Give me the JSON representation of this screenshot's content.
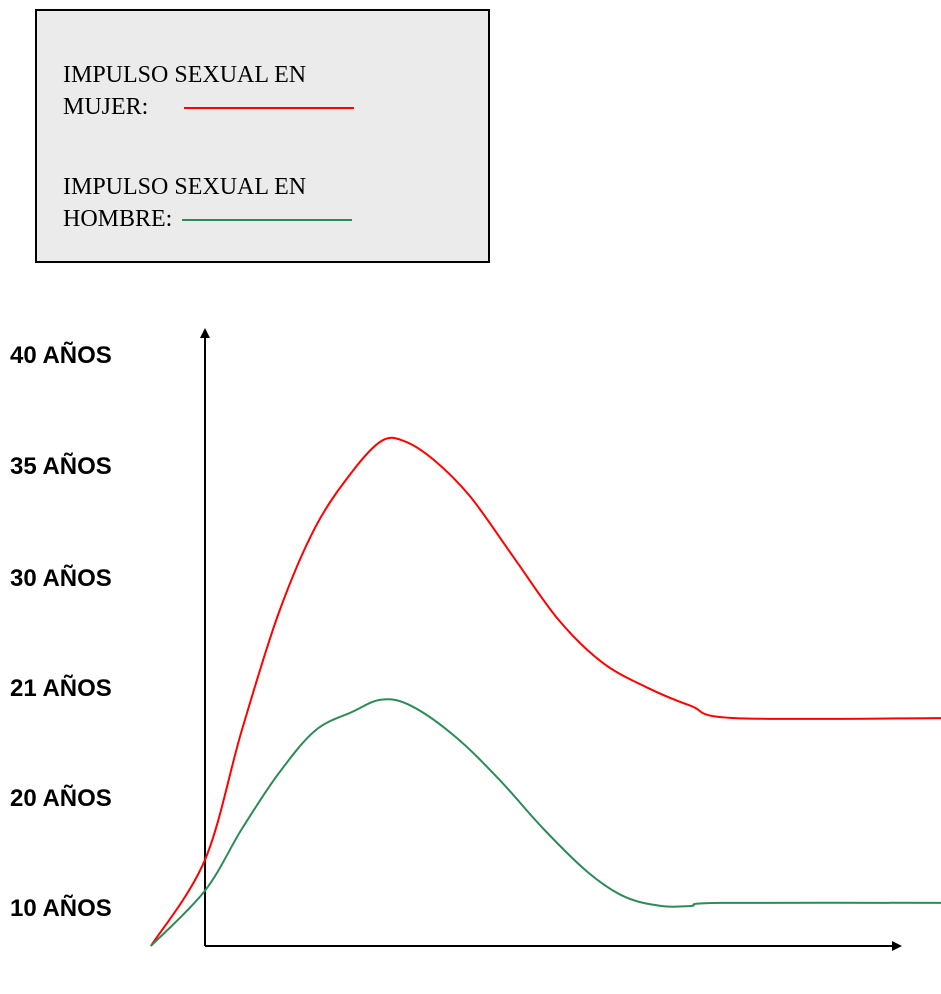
{
  "legend": {
    "entries": [
      {
        "label_line1": "IMPULSO SEXUAL EN",
        "label_line2": "MUJER:",
        "color": "#ff0000"
      },
      {
        "label_line1": "IMPULSO SEXUAL EN",
        "label_line2": "HOMBRE:",
        "color": "#2e8b57"
      }
    ]
  },
  "chart_data": {
    "type": "line",
    "y_tick_labels": [
      "40 AÑOS",
      "35 AÑOS",
      "30 AÑOS",
      "21 AÑOS",
      "20 AÑOS",
      "10 AÑOS"
    ],
    "grid": false,
    "legend_placement": "top-left",
    "series": [
      {
        "name": "IMPULSO SEXUAL EN MUJER",
        "color": "#ff0000",
        "points": [
          [
            -0.0735,
            0.0
          ],
          [
            0.0,
            0.14
          ],
          [
            0.05,
            0.35
          ],
          [
            0.1,
            0.54
          ],
          [
            0.15,
            0.68
          ],
          [
            0.2,
            0.77
          ],
          [
            0.24,
            0.82
          ],
          [
            0.27,
            0.82
          ],
          [
            0.31,
            0.79
          ],
          [
            0.36,
            0.73
          ],
          [
            0.42,
            0.63
          ],
          [
            0.48,
            0.53
          ],
          [
            0.54,
            0.46
          ],
          [
            0.6,
            0.42
          ],
          [
            0.66,
            0.39
          ],
          [
            0.72,
            0.37
          ],
          [
            1.0,
            0.37
          ]
        ]
      },
      {
        "name": "IMPULSO SEXUAL EN HOMBRE",
        "color": "#2e8b57",
        "points": [
          [
            -0.0735,
            0.0
          ],
          [
            0.0,
            0.09
          ],
          [
            0.05,
            0.19
          ],
          [
            0.1,
            0.28
          ],
          [
            0.15,
            0.35
          ],
          [
            0.2,
            0.38
          ],
          [
            0.24,
            0.4
          ],
          [
            0.28,
            0.39
          ],
          [
            0.34,
            0.34
          ],
          [
            0.4,
            0.27
          ],
          [
            0.46,
            0.19
          ],
          [
            0.52,
            0.12
          ],
          [
            0.57,
            0.08
          ],
          [
            0.62,
            0.065
          ],
          [
            0.66,
            0.065
          ],
          [
            0.7,
            0.07
          ],
          [
            1.0,
            0.07
          ]
        ]
      }
    ]
  }
}
